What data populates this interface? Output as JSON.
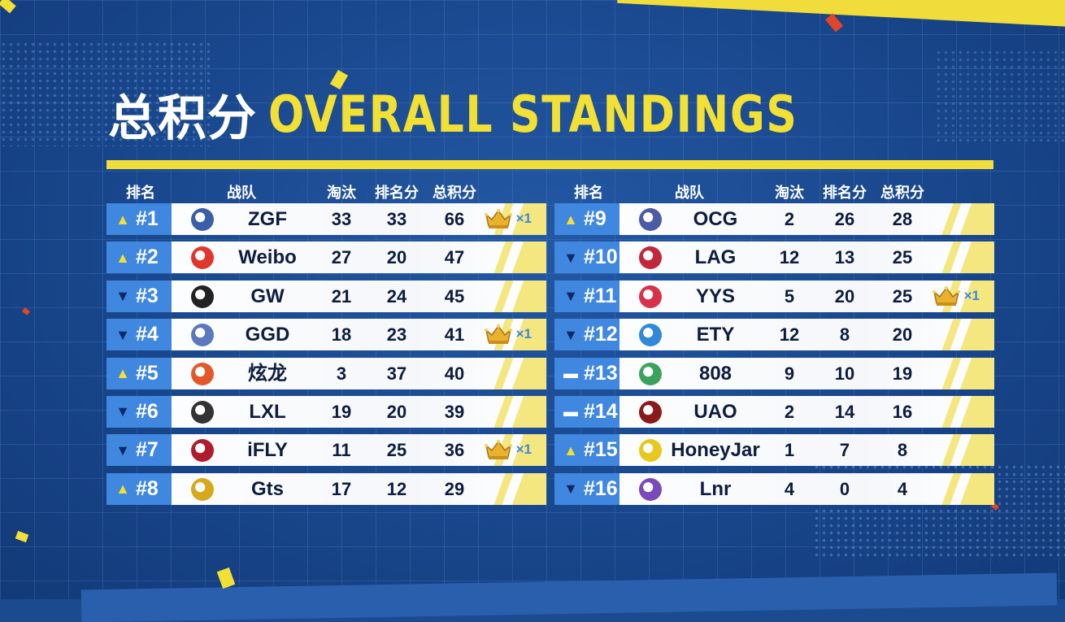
{
  "title": {
    "cn": "总积分",
    "en": "OVERALL STANDINGS"
  },
  "headers": {
    "rank": "排名",
    "team": "战队",
    "elims": "淘汰",
    "placement": "排名分",
    "total": "总积分"
  },
  "colors": {
    "accent_yellow": "#f0dc3a",
    "rank_blue": "#3f87df",
    "background": "#1b4a8f",
    "text_dark": "#0d1c3f"
  },
  "left_rows": [
    {
      "trend": "up",
      "rank": "#1",
      "team": "ZGF",
      "elims": "33",
      "placement": "33",
      "total": "66",
      "crown": "×1",
      "logo": "zgf-logo",
      "logo_color": "#3a5fa8"
    },
    {
      "trend": "up",
      "rank": "#2",
      "team": "Weibo",
      "elims": "27",
      "placement": "20",
      "total": "47",
      "crown": "",
      "logo": "weibo-logo",
      "logo_color": "#e0372c"
    },
    {
      "trend": "down",
      "rank": "#3",
      "team": "GW",
      "elims": "21",
      "placement": "24",
      "total": "45",
      "crown": "",
      "logo": "gw-logo",
      "logo_color": "#222222"
    },
    {
      "trend": "down",
      "rank": "#4",
      "team": "GGD",
      "elims": "18",
      "placement": "23",
      "total": "41",
      "crown": "×1",
      "logo": "ggd-logo",
      "logo_color": "#5a78c0"
    },
    {
      "trend": "up",
      "rank": "#5",
      "team": "炫龙",
      "elims": "3",
      "placement": "37",
      "total": "40",
      "crown": "",
      "logo": "xuanlong-logo",
      "logo_color": "#e2582a"
    },
    {
      "trend": "down",
      "rank": "#6",
      "team": "LXL",
      "elims": "19",
      "placement": "20",
      "total": "39",
      "crown": "",
      "logo": "lxl-logo",
      "logo_color": "#333333"
    },
    {
      "trend": "down",
      "rank": "#7",
      "team": "iFLY",
      "elims": "11",
      "placement": "25",
      "total": "36",
      "crown": "×1",
      "logo": "ifly-logo",
      "logo_color": "#b01c2e"
    },
    {
      "trend": "up",
      "rank": "#8",
      "team": "Gts",
      "elims": "17",
      "placement": "12",
      "total": "29",
      "crown": "",
      "logo": "gts-logo",
      "logo_color": "#d6a81c"
    }
  ],
  "right_rows": [
    {
      "trend": "up",
      "rank": "#9",
      "team": "OCG",
      "elims": "2",
      "placement": "26",
      "total": "28",
      "crown": "",
      "logo": "ocg-logo",
      "logo_color": "#4b5ba6"
    },
    {
      "trend": "down",
      "rank": "#10",
      "team": "LAG",
      "elims": "12",
      "placement": "13",
      "total": "25",
      "crown": "",
      "logo": "lag-logo",
      "logo_color": "#c2263a"
    },
    {
      "trend": "down",
      "rank": "#11",
      "team": "YYS",
      "elims": "5",
      "placement": "20",
      "total": "25",
      "crown": "×1",
      "logo": "yys-logo",
      "logo_color": "#d8324a"
    },
    {
      "trend": "down",
      "rank": "#12",
      "team": "ETY",
      "elims": "12",
      "placement": "8",
      "total": "20",
      "crown": "",
      "logo": "ety-logo",
      "logo_color": "#2f88d8"
    },
    {
      "trend": "same",
      "rank": "#13",
      "team": "808",
      "elims": "9",
      "placement": "10",
      "total": "19",
      "crown": "",
      "logo": "808-logo",
      "logo_color": "#3aa25a"
    },
    {
      "trend": "same",
      "rank": "#14",
      "team": "UAO",
      "elims": "2",
      "placement": "14",
      "total": "16",
      "crown": "",
      "logo": "uao-logo",
      "logo_color": "#8a1a1a"
    },
    {
      "trend": "up",
      "rank": "#15",
      "team": "HoneyJar",
      "elims": "1",
      "placement": "7",
      "total": "8",
      "crown": "",
      "logo": "honeyjar-logo",
      "logo_color": "#e8c81c"
    },
    {
      "trend": "down",
      "rank": "#16",
      "team": "Lnr",
      "elims": "4",
      "placement": "0",
      "total": "4",
      "crown": "",
      "logo": "lnr-logo",
      "logo_color": "#7a4ab8"
    }
  ]
}
